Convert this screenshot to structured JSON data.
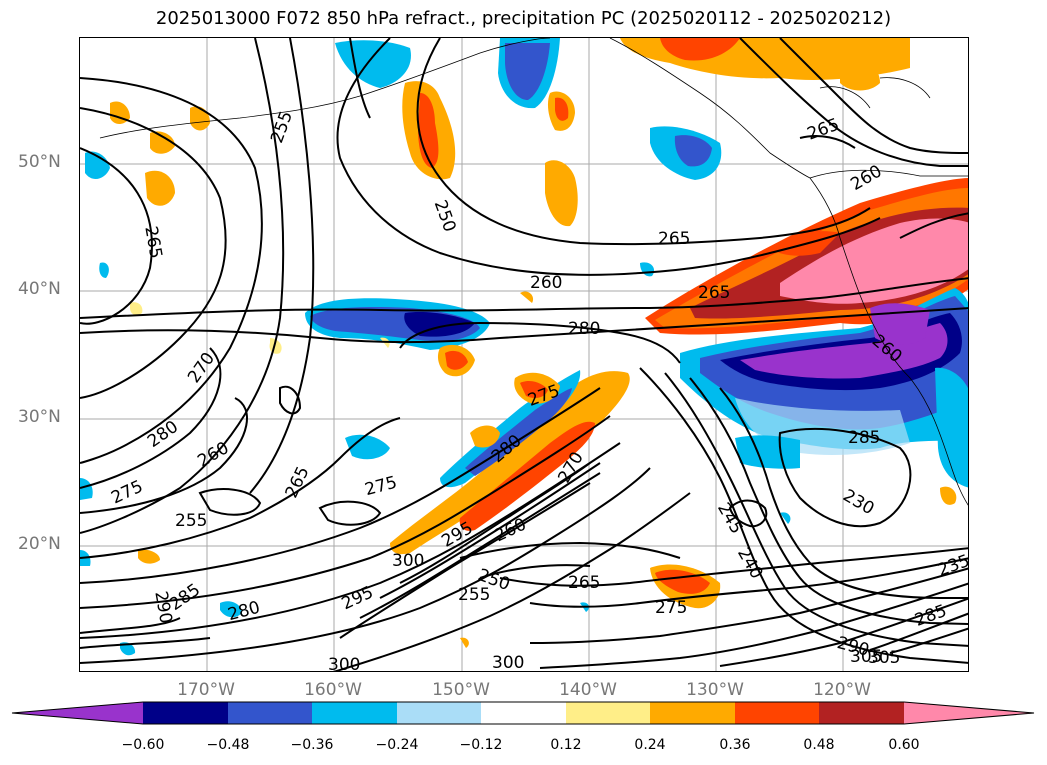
{
  "title": "2025013000 F072 850 hPa refract., precipitation PC (2025020112 - 2025020212)",
  "map": {
    "lat_labels": [
      "50°N",
      "40°N",
      "30°N",
      "20°N"
    ],
    "lon_labels": [
      "170°W",
      "160°W",
      "150°W",
      "140°W",
      "130°W",
      "120°W"
    ],
    "contour_labels": [
      "255",
      "250",
      "265",
      "265",
      "260",
      "265",
      "280",
      "265",
      "260",
      "270",
      "280",
      "260",
      "275",
      "265",
      "255",
      "275",
      "280",
      "275",
      "270",
      "300",
      "295",
      "260",
      "250",
      "255",
      "265",
      "275",
      "300",
      "295",
      "285",
      "280",
      "290",
      "245",
      "240",
      "230",
      "285",
      "290",
      "285",
      "305",
      "300",
      "305",
      "235",
      "260"
    ]
  },
  "colorbar": {
    "ticks": [
      "−0.60",
      "−0.48",
      "−0.36",
      "−0.24",
      "−0.12",
      "0.12",
      "0.24",
      "0.36",
      "0.48",
      "0.60"
    ],
    "colors": [
      "#9933cc",
      "#000088",
      "#3355cc",
      "#00bbee",
      "#aaddf7",
      "#ffffff",
      "#ffee88",
      "#ffaa00",
      "#ff4400",
      "#b22222",
      "#ff88aa"
    ]
  }
}
